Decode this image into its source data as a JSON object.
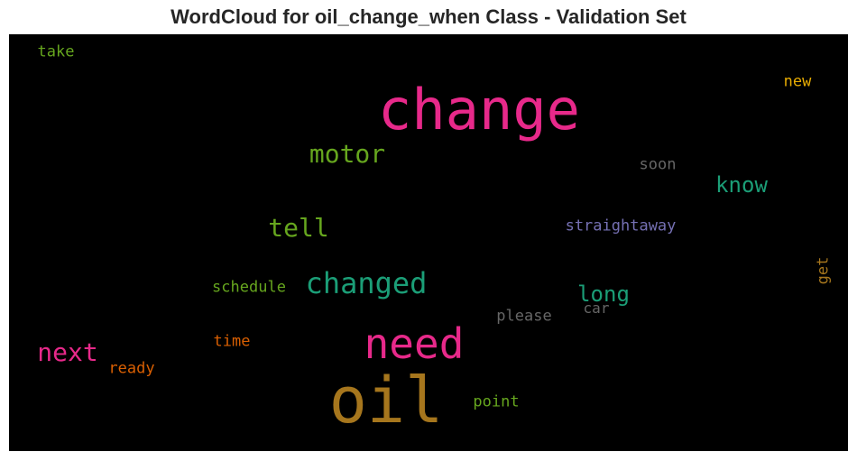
{
  "chart_data": {
    "type": "wordcloud",
    "title": "WordCloud for oil_change_when Class - Validation Set",
    "background": "#000000",
    "words": [
      {
        "text": "change",
        "weight": 1.0,
        "color": "#e7298a",
        "orientation": "horizontal"
      },
      {
        "text": "oil",
        "weight": 0.98,
        "color": "#a6761d",
        "orientation": "horizontal"
      },
      {
        "text": "need",
        "weight": 0.72,
        "color": "#e7298a",
        "orientation": "horizontal"
      },
      {
        "text": "changed",
        "weight": 0.55,
        "color": "#1b9e77",
        "orientation": "horizontal"
      },
      {
        "text": "motor",
        "weight": 0.45,
        "color": "#66a61e",
        "orientation": "horizontal"
      },
      {
        "text": "tell",
        "weight": 0.45,
        "color": "#66a61e",
        "orientation": "horizontal"
      },
      {
        "text": "next",
        "weight": 0.45,
        "color": "#e7298a",
        "orientation": "horizontal"
      },
      {
        "text": "know",
        "weight": 0.38,
        "color": "#1b9e77",
        "orientation": "horizontal"
      },
      {
        "text": "long",
        "weight": 0.38,
        "color": "#1b9e77",
        "orientation": "horizontal"
      },
      {
        "text": "straightaway",
        "weight": 0.3,
        "color": "#7570b3",
        "orientation": "horizontal"
      },
      {
        "text": "schedule",
        "weight": 0.28,
        "color": "#66a61e",
        "orientation": "horizontal"
      },
      {
        "text": "please",
        "weight": 0.28,
        "color": "#666666",
        "orientation": "horizontal"
      },
      {
        "text": "soon",
        "weight": 0.28,
        "color": "#666666",
        "orientation": "horizontal"
      },
      {
        "text": "new",
        "weight": 0.28,
        "color": "#e6ab02",
        "orientation": "horizontal"
      },
      {
        "text": "get",
        "weight": 0.28,
        "color": "#a6761d",
        "orientation": "vertical"
      },
      {
        "text": "time",
        "weight": 0.28,
        "color": "#d95f02",
        "orientation": "horizontal"
      },
      {
        "text": "ready",
        "weight": 0.28,
        "color": "#d95f02",
        "orientation": "horizontal"
      },
      {
        "text": "point",
        "weight": 0.28,
        "color": "#66a61e",
        "orientation": "horizontal"
      },
      {
        "text": "take",
        "weight": 0.28,
        "color": "#66a61e",
        "orientation": "horizontal"
      },
      {
        "text": "car",
        "weight": 0.26,
        "color": "#666666",
        "orientation": "horizontal"
      }
    ]
  }
}
